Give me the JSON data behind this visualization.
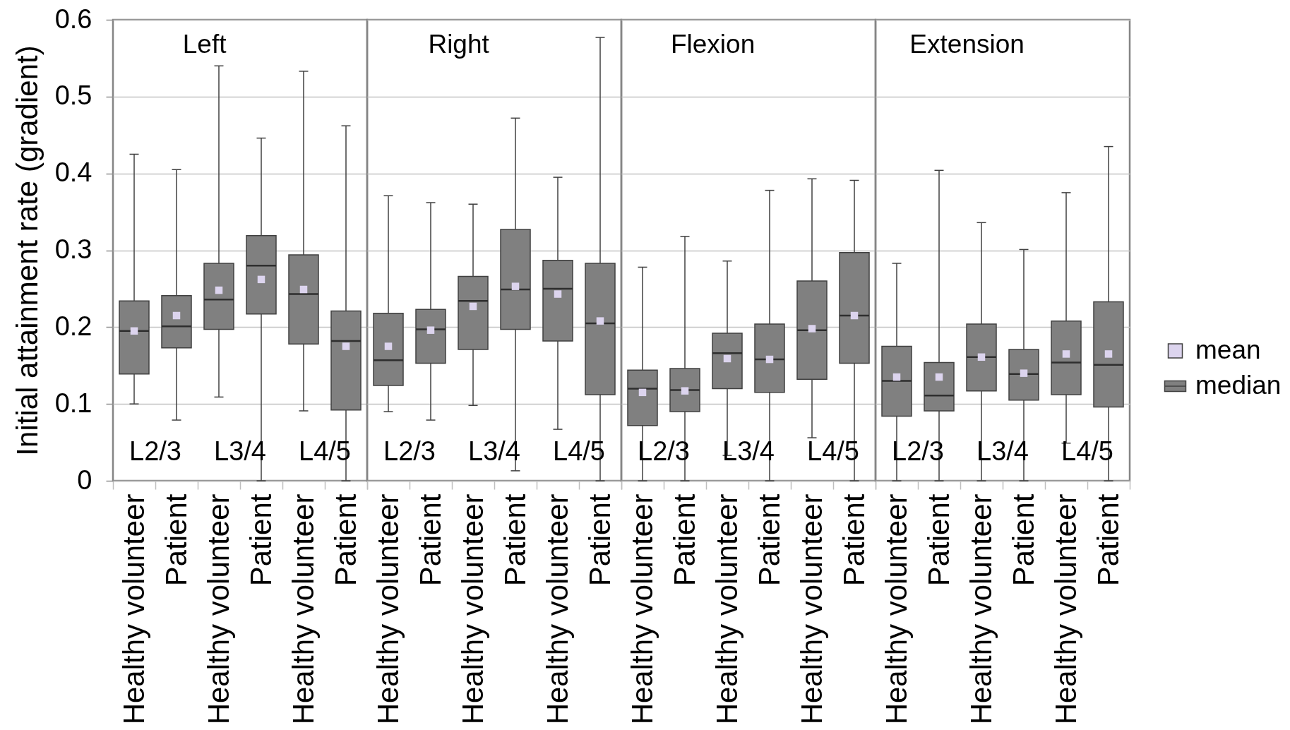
{
  "chart_data": [
    {
      "type": "box",
      "title": "Left",
      "ylabel": "Initial attainment rate (gradient)",
      "categories": [
        "Healthy volunteer",
        "Patient",
        "Healthy volunteer",
        "Patient",
        "Healthy volunteer",
        "Patient"
      ],
      "series": [
        {
          "type": "scatter",
          "color": "#dcd4ee",
          "marker": "square",
          "values": [
            0.195,
            0.215,
            0.248,
            0.262,
            0.249,
            0.175
          ]
        },
        {
          "type": "box",
          "color": "#808080",
          "boxes": [
            {
              "low": 0.1,
              "q1": 0.139,
              "median": 0.195,
              "q3": 0.234,
              "high": 0.425
            },
            {
              "low": 0.079,
              "q1": 0.173,
              "median": 0.201,
              "q3": 0.241,
              "high": 0.405
            },
            {
              "low": 0.109,
              "q1": 0.197,
              "median": 0.236,
              "q3": 0.283,
              "high": 0.54
            },
            {
              "low": 0,
              "q1": 0.217,
              "median": 0.28,
              "q3": 0.319,
              "high": 0.446
            },
            {
              "low": 0.091,
              "q1": 0.178,
              "median": 0.243,
              "q3": 0.294,
              "high": 0.533
            },
            {
              "low": 0,
              "q1": 0.092,
              "median": 0.182,
              "q3": 0.221,
              "high": 0.462
            }
          ]
        }
      ],
      "annotations": [
        "L2/3",
        "L3/4",
        "L4/5"
      ],
      "ylim": [
        0,
        0.6
      ],
      "yticks": [
        0,
        0.1,
        0.2,
        0.3,
        0.4,
        0.5,
        0.6
      ],
      "grid": "y"
    },
    {
      "type": "box",
      "title": "Right",
      "categories": [
        "Healthy volunteer",
        "Patient",
        "Healthy volunteer",
        "Patient",
        "Healthy volunteer",
        "Patient"
      ],
      "series": [
        {
          "type": "scatter",
          "color": "#dcd4ee",
          "marker": "square",
          "values": [
            0.175,
            0.196,
            0.227,
            0.253,
            0.243,
            0.208
          ]
        },
        {
          "type": "box",
          "color": "#808080",
          "boxes": [
            {
              "low": 0.09,
              "q1": 0.124,
              "median": 0.157,
              "q3": 0.218,
              "high": 0.371
            },
            {
              "low": 0.079,
              "q1": 0.153,
              "median": 0.197,
              "q3": 0.223,
              "high": 0.362
            },
            {
              "low": 0.098,
              "q1": 0.171,
              "median": 0.234,
              "q3": 0.266,
              "high": 0.36
            },
            {
              "low": 0.013,
              "q1": 0.197,
              "median": 0.249,
              "q3": 0.327,
              "high": 0.472
            },
            {
              "low": 0.067,
              "q1": 0.182,
              "median": 0.25,
              "q3": 0.287,
              "high": 0.395
            },
            {
              "low": 0,
              "q1": 0.112,
              "median": 0.205,
              "q3": 0.283,
              "high": 0.577
            }
          ]
        }
      ],
      "annotations": [
        "L2/3",
        "L3/4",
        "L4/5"
      ],
      "ylim": [
        0,
        0.6
      ],
      "yticks": [
        0,
        0.1,
        0.2,
        0.3,
        0.4,
        0.5,
        0.6
      ],
      "grid": "y",
      "tick_labels": "x"
    },
    {
      "type": "box",
      "title": "Flexion",
      "categories": [
        "Healthy volunteer",
        "Patient",
        "Healthy volunteer",
        "Patient",
        "Healthy volunteer",
        "Patient"
      ],
      "series": [
        {
          "type": "scatter",
          "color": "#dcd4ee",
          "marker": "square",
          "values": [
            0.115,
            0.117,
            0.159,
            0.158,
            0.198,
            0.215
          ]
        },
        {
          "type": "box",
          "color": "#808080",
          "boxes": [
            {
              "low": 0,
              "q1": 0.072,
              "median": 0.12,
              "q3": 0.144,
              "high": 0.278
            },
            {
              "low": 0,
              "q1": 0.09,
              "median": 0.118,
              "q3": 0.146,
              "high": 0.318
            },
            {
              "low": 0.033,
              "q1": 0.12,
              "median": 0.166,
              "q3": 0.192,
              "high": 0.286
            },
            {
              "low": 0,
              "q1": 0.115,
              "median": 0.158,
              "q3": 0.204,
              "high": 0.378
            },
            {
              "low": 0.056,
              "q1": 0.132,
              "median": 0.196,
              "q3": 0.26,
              "high": 0.393
            },
            {
              "low": 0,
              "q1": 0.153,
              "median": 0.215,
              "q3": 0.297,
              "high": 0.391
            }
          ]
        }
      ],
      "annotations": [
        "L2/3",
        "L3/4",
        "L4/5"
      ],
      "ylim": [
        0,
        0.6
      ],
      "yticks": [
        0,
        0.1,
        0.2,
        0.3,
        0.4,
        0.5,
        0.6
      ],
      "grid": "y",
      "tick_labels": "x"
    },
    {
      "type": "box",
      "title": "Extension",
      "categories": [
        "Healthy volunteer",
        "Patient",
        "Healthy volunteer",
        "Patient",
        "Healthy volunteer",
        "Patient"
      ],
      "series": [
        {
          "name": "mean",
          "type": "scatter",
          "color": "#dcd4ee",
          "marker": "square",
          "values": [
            0.135,
            0.135,
            0.161,
            0.14,
            0.165,
            0.165
          ]
        },
        {
          "name": "median",
          "type": "box",
          "color": "#808080",
          "boxes": [
            {
              "low": 0,
              "q1": 0.084,
              "median": 0.13,
              "q3": 0.175,
              "high": 0.283
            },
            {
              "low": 0,
              "q1": 0.091,
              "median": 0.111,
              "q3": 0.154,
              "high": 0.404
            },
            {
              "low": 0,
              "q1": 0.117,
              "median": 0.161,
              "q3": 0.204,
              "high": 0.336
            },
            {
              "low": 0,
              "q1": 0.105,
              "median": 0.139,
              "q3": 0.171,
              "high": 0.301
            },
            {
              "low": 0.049,
              "q1": 0.112,
              "median": 0.154,
              "q3": 0.208,
              "high": 0.375
            },
            {
              "low": 0,
              "q1": 0.096,
              "median": 0.151,
              "q3": 0.233,
              "high": 0.435
            }
          ]
        }
      ],
      "annotations": [
        "L2/3",
        "L3/4",
        "L4/5"
      ],
      "ylim": [
        0,
        0.6
      ],
      "yticks": [
        0,
        0.1,
        0.2,
        0.3,
        0.4,
        0.5,
        0.6
      ],
      "grid": "y",
      "tick_labels": "x",
      "legend": "right"
    }
  ]
}
